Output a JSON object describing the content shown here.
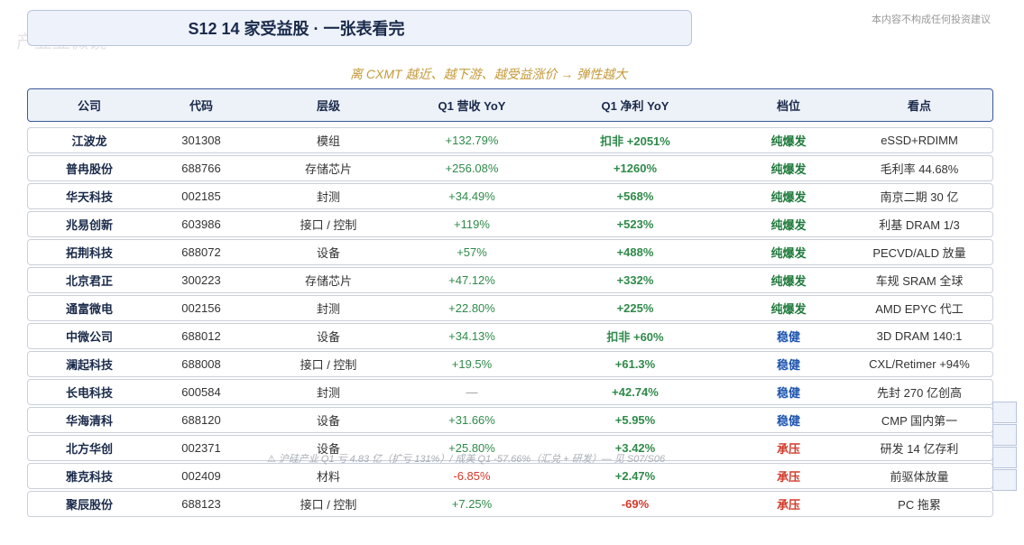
{
  "header": {
    "title": "S12  14 家受益股 · 一张表看完",
    "disclaimer": "本内容不构成任何投资建议",
    "watermark": "产业显微镜",
    "subtitle": "离 CXMT 越近、越下游、越受益涨价 → 弹性越大"
  },
  "note": "⚠ 沪硅产业 Q1 亏 4.83 亿（扩亏 131%）/ 成美 Q1 -57.66%（汇兑 + 研发）— 见 S07/S06",
  "table": {
    "columns": [
      "公司",
      "代码",
      "层级",
      "Q1 营收 YoY",
      "Q1 净利 YoY",
      "档位",
      "看点"
    ],
    "rows": [
      [
        "江波龙",
        "301308",
        "模组",
        "+132.79%",
        "扣非 +2051%",
        "纯爆发",
        "eSSD+RDIMM"
      ],
      [
        "普冉股份",
        "688766",
        "存储芯片",
        "+256.08%",
        "+1260%",
        "纯爆发",
        "毛利率 44.68%"
      ],
      [
        "华天科技",
        "002185",
        "封测",
        "+34.49%",
        "+568%",
        "纯爆发",
        "南京二期 30 亿"
      ],
      [
        "兆易创新",
        "603986",
        "接口 / 控制",
        "+119%",
        "+523%",
        "纯爆发",
        "利基 DRAM 1/3"
      ],
      [
        "拓荆科技",
        "688072",
        "设备",
        "+57%",
        "+488%",
        "纯爆发",
        "PECVD/ALD 放量"
      ],
      [
        "北京君正",
        "300223",
        "存储芯片",
        "+47.12%",
        "+332%",
        "纯爆发",
        "车规 SRAM 全球"
      ],
      [
        "通富微电",
        "002156",
        "封测",
        "+22.80%",
        "+225%",
        "纯爆发",
        "AMD EPYC 代工"
      ],
      [
        "中微公司",
        "688012",
        "设备",
        "+34.13%",
        "扣非 +60%",
        "稳健",
        "3D DRAM 140:1"
      ],
      [
        "澜起科技",
        "688008",
        "接口 / 控制",
        "+19.5%",
        "+61.3%",
        "稳健",
        "CXL/Retimer +94%"
      ],
      [
        "长电科技",
        "600584",
        "封测",
        "—",
        "+42.74%",
        "稳健",
        "先封 270 亿创高"
      ],
      [
        "华海清科",
        "688120",
        "设备",
        "+31.66%",
        "+5.95%",
        "稳健",
        "CMP 国内第一"
      ],
      [
        "北方华创",
        "002371",
        "设备",
        "+25.80%",
        "+3.42%",
        "承压",
        "研发 14 亿存利"
      ],
      [
        "雅克科技",
        "002409",
        "材料",
        "-6.85%",
        "+2.47%",
        "承压",
        "前驱体放量"
      ],
      [
        "聚辰股份",
        "688123",
        "接口 / 控制",
        "+7.25%",
        "-69%",
        "承压",
        "PC 拖累"
      ]
    ],
    "tier_colors": {
      "纯爆发": "#1f7a3c",
      "稳健": "#1f56b0",
      "承压": "#d23a2a"
    },
    "up_color": "#2f8a4a",
    "down_color": "#d23a2a",
    "flat_color": "#999999"
  }
}
